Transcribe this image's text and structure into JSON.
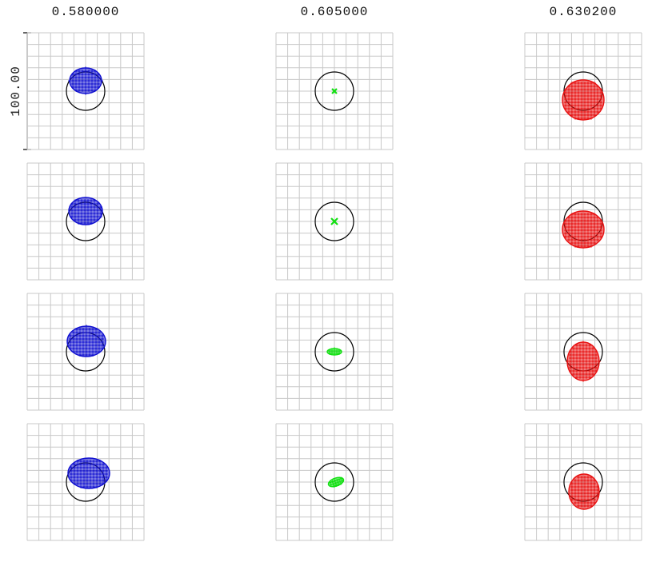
{
  "wavelengths": [
    "0.580000",
    "0.605000",
    "0.630200"
  ],
  "scale_bar_label": "100.00",
  "colors": {
    "grid": "#c8c8c8",
    "circle": "#000000",
    "scale_bar": "#000000",
    "wavelengths": [
      "#1010d0",
      "#10e010",
      "#e81010"
    ]
  },
  "columns": [
    "blue-spot-column",
    "green-spot-column",
    "red-spot-column"
  ],
  "rows": [
    "field-1",
    "field-2",
    "field-3",
    "field-4"
  ],
  "spots": [
    [
      {
        "shape": "ellipse",
        "rx": 20,
        "ry": 16,
        "dx": 0,
        "dy": -13
      },
      {
        "shape": "x-dot",
        "rx": 3,
        "ry": 3,
        "dx": 0,
        "dy": 0
      },
      {
        "shape": "ellipse",
        "rx": 26,
        "ry": 25,
        "dx": 0,
        "dy": 11
      }
    ],
    [
      {
        "shape": "ellipse",
        "rx": 21,
        "ry": 17,
        "dx": 0,
        "dy": -13
      },
      {
        "shape": "x-dot",
        "rx": 4,
        "ry": 4,
        "dx": 0,
        "dy": 0
      },
      {
        "shape": "ellipse",
        "rx": 26,
        "ry": 23,
        "dx": 0,
        "dy": 10
      }
    ],
    [
      {
        "shape": "ellipse",
        "rx": 24,
        "ry": 19,
        "dx": 1,
        "dy": -13
      },
      {
        "shape": "ellipse",
        "rx": 9,
        "ry": 4,
        "dx": 0,
        "dy": 0
      },
      {
        "shape": "ellipse",
        "rx": 20,
        "ry": 24,
        "dx": 0,
        "dy": 12
      }
    ],
    [
      {
        "shape": "ellipse",
        "rx": 26,
        "ry": 19,
        "dx": 4,
        "dy": -11
      },
      {
        "shape": "tilted",
        "rx": 10,
        "ry": 5,
        "dx": 2,
        "dy": 0
      },
      {
        "shape": "ellipse",
        "rx": 19,
        "ry": 22,
        "dx": 1,
        "dy": 12
      }
    ]
  ]
}
